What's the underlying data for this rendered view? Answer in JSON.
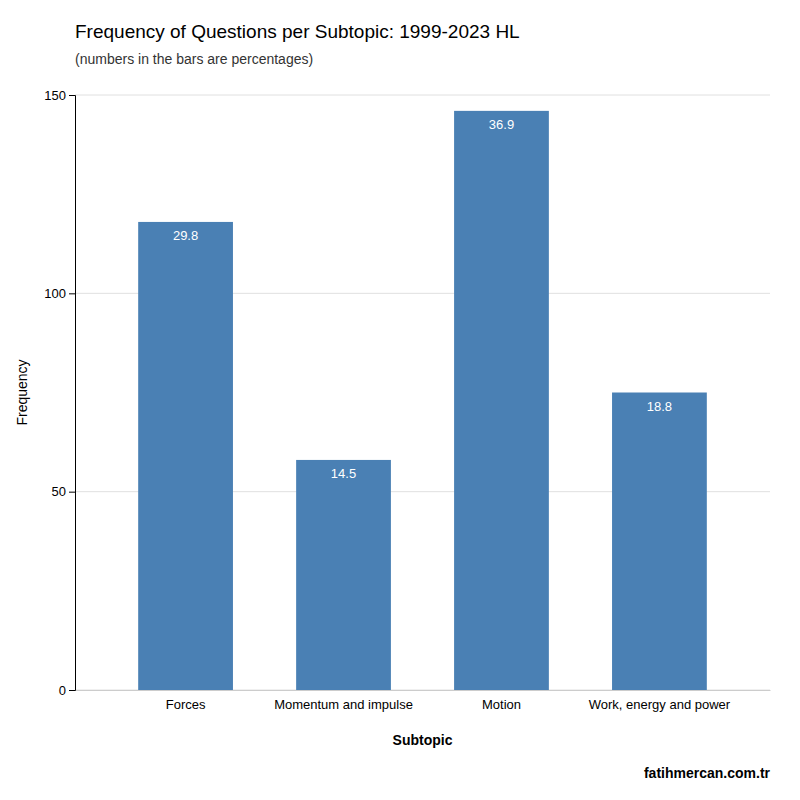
{
  "chart_data": {
    "type": "bar",
    "title": "Frequency of Questions per Subtopic: 1999-2023 HL",
    "subtitle": "(numbers in the bars are percentages)",
    "xlabel": "Subtopic",
    "ylabel": "Frequency",
    "categories": [
      "Forces",
      "Momentum and impulse",
      "Motion",
      "Work, energy and power"
    ],
    "values": [
      118,
      58,
      146,
      75
    ],
    "percentages": [
      29.8,
      14.5,
      36.9,
      18.8
    ],
    "color": "#4a80b4",
    "ylim": [
      0,
      150
    ],
    "yticks": [
      0,
      50,
      100,
      150
    ],
    "grid": true,
    "watermark": "fatihmercan.com.tr"
  }
}
